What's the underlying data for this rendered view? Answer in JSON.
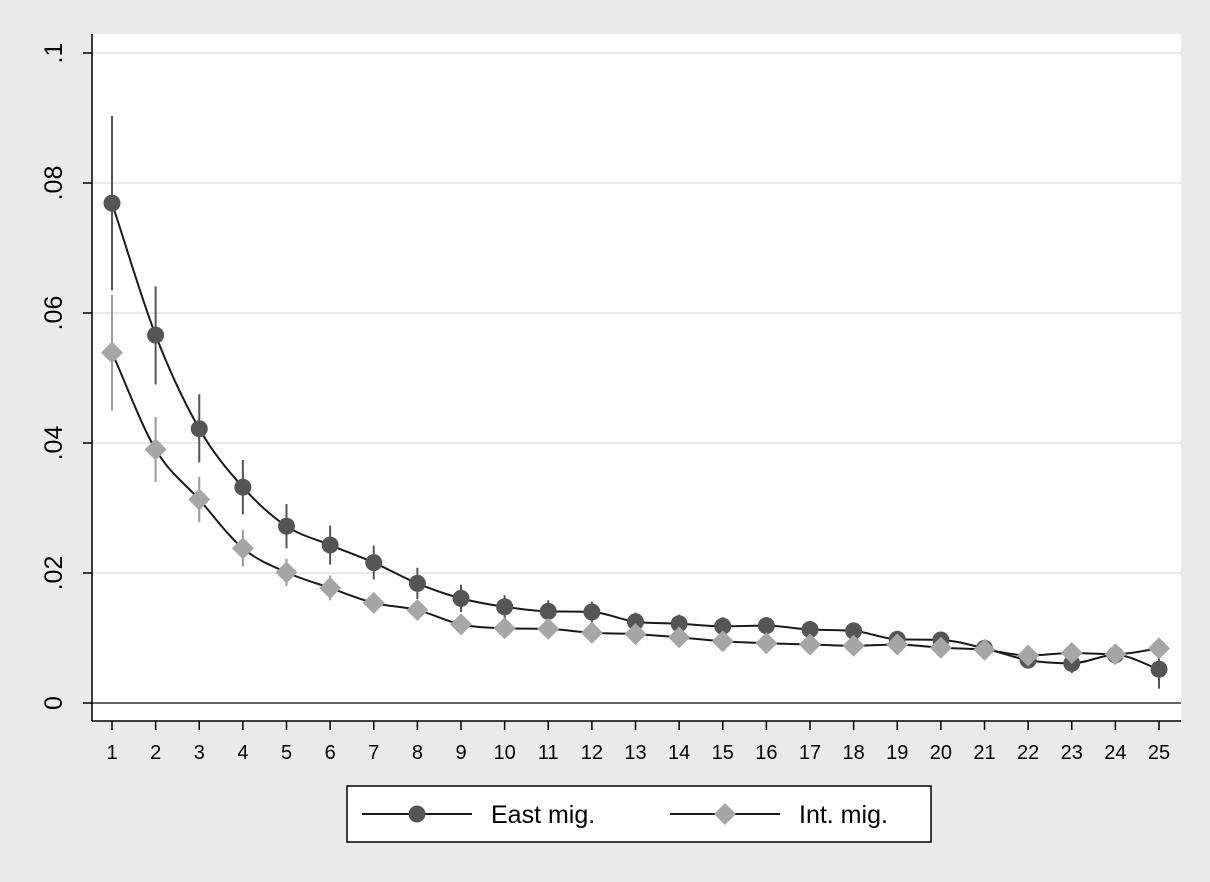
{
  "chart_data": {
    "type": "line",
    "title": "",
    "xlabel": "",
    "ylabel": "",
    "x": [
      1,
      2,
      3,
      4,
      5,
      6,
      7,
      8,
      9,
      10,
      11,
      12,
      13,
      14,
      15,
      16,
      17,
      18,
      19,
      20,
      21,
      22,
      23,
      24,
      25
    ],
    "x_tick_labels": [
      "1",
      "2",
      "3",
      "4",
      "5",
      "6",
      "7",
      "8",
      "9",
      "10",
      "11",
      "12",
      "13",
      "14",
      "15",
      "16",
      "17",
      "18",
      "19",
      "20",
      "21",
      "22",
      "23",
      "24",
      "25"
    ],
    "ylim": [
      0,
      0.1
    ],
    "y_ticks": [
      0,
      0.02,
      0.04,
      0.06,
      0.08,
      0.1
    ],
    "y_tick_labels": [
      "0",
      ".02",
      ".04",
      ".06",
      ".08",
      ".1"
    ],
    "grid": true,
    "legend_position": "bottom",
    "series": [
      {
        "name": "East mig.",
        "marker": "circle",
        "color": "#555555",
        "values": [
          0.0769,
          0.0566,
          0.0422,
          0.0332,
          0.0272,
          0.0243,
          0.0216,
          0.0184,
          0.0161,
          0.0148,
          0.0141,
          0.014,
          0.0125,
          0.0122,
          0.0118,
          0.0119,
          0.0113,
          0.0111,
          0.0098,
          0.0097,
          0.0084,
          0.0066,
          0.0061,
          0.0074,
          0.0052
        ],
        "ci_low": [
          0.0635,
          0.049,
          0.037,
          0.029,
          0.0238,
          0.0213,
          0.019,
          0.016,
          0.014,
          0.013,
          0.0124,
          0.0124,
          0.0111,
          0.0108,
          0.0104,
          0.0106,
          0.01,
          0.0099,
          0.0087,
          0.0086,
          0.0074,
          0.0056,
          0.0046,
          0.0061,
          0.0022
        ],
        "ci_high": [
          0.0903,
          0.0641,
          0.0475,
          0.0374,
          0.0306,
          0.0273,
          0.0242,
          0.0208,
          0.0182,
          0.0166,
          0.0158,
          0.0156,
          0.0139,
          0.0136,
          0.0132,
          0.0132,
          0.0126,
          0.0123,
          0.0109,
          0.0108,
          0.0094,
          0.0076,
          0.0076,
          0.0087,
          0.0082
        ]
      },
      {
        "name": "Int. mig.",
        "marker": "diamond",
        "color": "#a6a6a6",
        "values": [
          0.0539,
          0.039,
          0.0313,
          0.0238,
          0.0201,
          0.0177,
          0.0154,
          0.0143,
          0.0121,
          0.0115,
          0.0114,
          0.0108,
          0.0106,
          0.0101,
          0.0095,
          0.0092,
          0.009,
          0.0088,
          0.009,
          0.0085,
          0.0082,
          0.0073,
          0.0077,
          0.0075,
          0.0084
        ],
        "ci_low": [
          0.045,
          0.034,
          0.0278,
          0.021,
          0.018,
          0.0158,
          0.0138,
          0.0128,
          0.0108,
          0.0103,
          0.0103,
          0.0097,
          0.0095,
          0.0091,
          0.0086,
          0.0083,
          0.0081,
          0.0079,
          0.0081,
          0.0076,
          0.0074,
          0.0065,
          0.0068,
          0.0066,
          0.0075
        ],
        "ci_high": [
          0.0628,
          0.044,
          0.0348,
          0.0266,
          0.0222,
          0.0196,
          0.017,
          0.0158,
          0.0134,
          0.0127,
          0.0125,
          0.0119,
          0.0117,
          0.0111,
          0.0104,
          0.0101,
          0.0099,
          0.0097,
          0.0099,
          0.0094,
          0.009,
          0.0081,
          0.0086,
          0.0084,
          0.0093
        ]
      }
    ]
  }
}
